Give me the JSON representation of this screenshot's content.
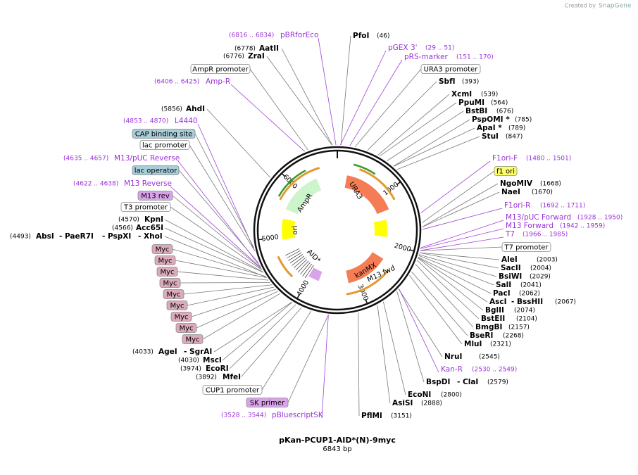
{
  "brand": {
    "created_by": "Created by",
    "name": "SnapGene"
  },
  "title": "pKan-PCUP1-AID*(N)-9myc",
  "length": {
    "value": 6843,
    "label": "6843 bp"
  },
  "ruler": [
    1000,
    2000,
    3000,
    4000,
    5000,
    6000
  ],
  "map_features": [
    "URA3",
    "AmpR",
    "ori",
    "AID*",
    "M13 fwd",
    "kanMX"
  ],
  "enzymes": [
    {
      "names": [
        "PfoI"
      ],
      "position": "(46)"
    },
    {
      "names": [
        "AatII"
      ],
      "position": "(6778)"
    },
    {
      "names": [
        "ZraI"
      ],
      "position": "(6776)"
    },
    {
      "names": [
        "SbfI"
      ],
      "position": "(393)"
    },
    {
      "names": [
        "XcmI"
      ],
      "position": "(539)"
    },
    {
      "names": [
        "PpuMI"
      ],
      "position": "(564)"
    },
    {
      "names": [
        "BstBI"
      ],
      "position": "(676)"
    },
    {
      "names": [
        "PspOMI *"
      ],
      "position": "(785)"
    },
    {
      "names": [
        "ApaI *"
      ],
      "position": "(789)"
    },
    {
      "names": [
        "StuI"
      ],
      "position": "(847)"
    },
    {
      "names": [
        "AhdI"
      ],
      "position": "(5856)"
    },
    {
      "names": [
        "NgoMIV"
      ],
      "position": "(1668)"
    },
    {
      "names": [
        "NaeI"
      ],
      "position": "(1670)"
    },
    {
      "names": [
        "AleI"
      ],
      "position": "(2003)"
    },
    {
      "names": [
        "SacII"
      ],
      "position": "(2004)"
    },
    {
      "names": [
        "BsiWI"
      ],
      "position": "(2029)"
    },
    {
      "names": [
        "SalI"
      ],
      "position": "(2041)"
    },
    {
      "names": [
        "PacI"
      ],
      "position": "(2062)"
    },
    {
      "names": [
        "AscI",
        "- BssHII"
      ],
      "position": "(2067)"
    },
    {
      "names": [
        "BglII"
      ],
      "position": "(2074)"
    },
    {
      "names": [
        "BstEII"
      ],
      "position": "(2104)"
    },
    {
      "names": [
        "BmgBI"
      ],
      "position": "(2157)"
    },
    {
      "names": [
        "BseRI"
      ],
      "position": "(2268)"
    },
    {
      "names": [
        "MluI"
      ],
      "position": "(2321)"
    },
    {
      "names": [
        "NruI"
      ],
      "position": "(2545)"
    },
    {
      "names": [
        "BspDI",
        "- ClaI"
      ],
      "position": "(2579)"
    },
    {
      "names": [
        "EcoNI"
      ],
      "position": "(2800)"
    },
    {
      "names": [
        "AsiSI"
      ],
      "position": "(2888)"
    },
    {
      "names": [
        "PflMI"
      ],
      "position": "(3151)"
    },
    {
      "names": [
        "KpnI"
      ],
      "position": "(4570)"
    },
    {
      "names": [
        "Acc65I"
      ],
      "position": "(4566)"
    },
    {
      "names": [
        "AbsI",
        "- PaeR7I",
        "- PspXI",
        "- XhoI"
      ],
      "position": "(4493)"
    },
    {
      "names": [
        "AgeI",
        "- SgrAI"
      ],
      "position": "(4033)"
    },
    {
      "names": [
        "MscI"
      ],
      "position": "(4030)"
    },
    {
      "names": [
        "EcoRI"
      ],
      "position": "(3974)"
    },
    {
      "names": [
        "MfeI"
      ],
      "position": "(3892)"
    }
  ],
  "primers": [
    {
      "name": "pBRforEco",
      "range": "(6816 .. 6834)"
    },
    {
      "name": "pGEX 3'",
      "range": "(29 .. 51)"
    },
    {
      "name": "pRS-marker",
      "range": "(151 .. 170)"
    },
    {
      "name": "Amp-R",
      "range": "(6406 .. 6425)"
    },
    {
      "name": "L4440",
      "range": "(4853 .. 4870)"
    },
    {
      "name": "M13/pUC Reverse",
      "range": "(4635 .. 4657)"
    },
    {
      "name": "M13 Reverse",
      "range": "(4622 .. 4638)"
    },
    {
      "name": "F1ori-F",
      "range": "(1480 .. 1501)"
    },
    {
      "name": "F1ori-R",
      "range": "(1692 .. 1711)"
    },
    {
      "name": "M13/pUC Forward",
      "range": "(1928 .. 1950)"
    },
    {
      "name": "M13 Forward",
      "range": "(1942 .. 1959)"
    },
    {
      "name": "T7",
      "range": "(1966 .. 1985)"
    },
    {
      "name": "Kan-R",
      "range": "(2530 .. 2549)"
    },
    {
      "name": "pBluescriptSK",
      "range": "(3528 .. 3544)"
    }
  ],
  "features": [
    "AmpR promoter",
    "URA3 promoter",
    "CAP binding site",
    "lac promoter",
    "lac operator",
    "M13 rev",
    "T3 promoter",
    "Myc",
    "Myc",
    "Myc",
    "Myc",
    "Myc",
    "Myc",
    "Myc",
    "Myc",
    "Myc",
    "f1 ori",
    "T7 promoter",
    "CUP1 promoter",
    "SK primer"
  ]
}
